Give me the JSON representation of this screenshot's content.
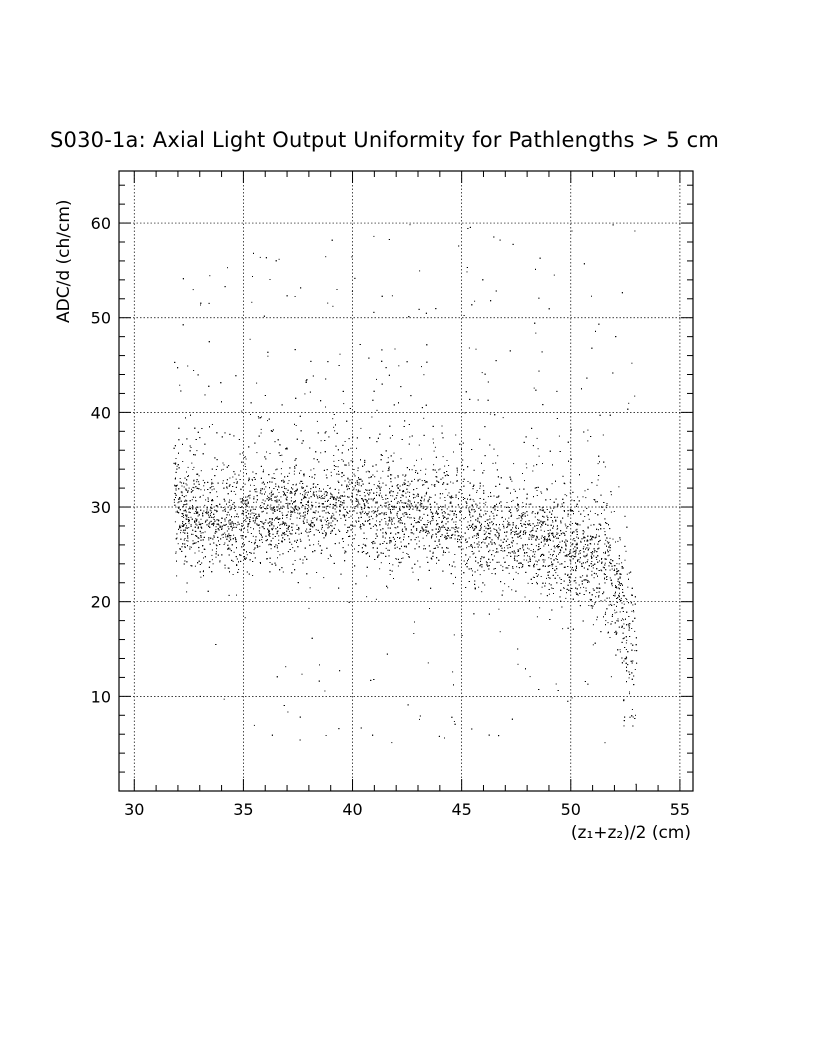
{
  "chart_data": {
    "type": "scatter",
    "title": "S030-1a: Axial Light Output Uniformity for Pathlengths > 5 cm",
    "xlabel": "(z₁+z₂)/2 (cm)",
    "ylabel": "ADC/d (ch/cm)",
    "xlim": [
      29.3,
      55.6
    ],
    "ylim": [
      0,
      65.5
    ],
    "x_ticks": [
      "30",
      "35",
      "40",
      "45",
      "50",
      "55"
    ],
    "y_ticks": [
      "10",
      "20",
      "30",
      "40",
      "50",
      "60"
    ],
    "grid": true,
    "legend": "none",
    "marker_color": "#000000",
    "point_count": 9000,
    "profile": {
      "x": [
        32,
        34,
        36,
        38,
        40,
        42,
        44,
        46,
        48,
        50,
        51.5,
        52.5,
        53
      ],
      "y": [
        29,
        28.5,
        29,
        29.5,
        30,
        29,
        28.5,
        27.5,
        26.5,
        25,
        24,
        19,
        13
      ]
    },
    "outlier_x_range": [
      31.8,
      53.0
    ],
    "outlier_y_range": [
      5,
      60
    ]
  }
}
